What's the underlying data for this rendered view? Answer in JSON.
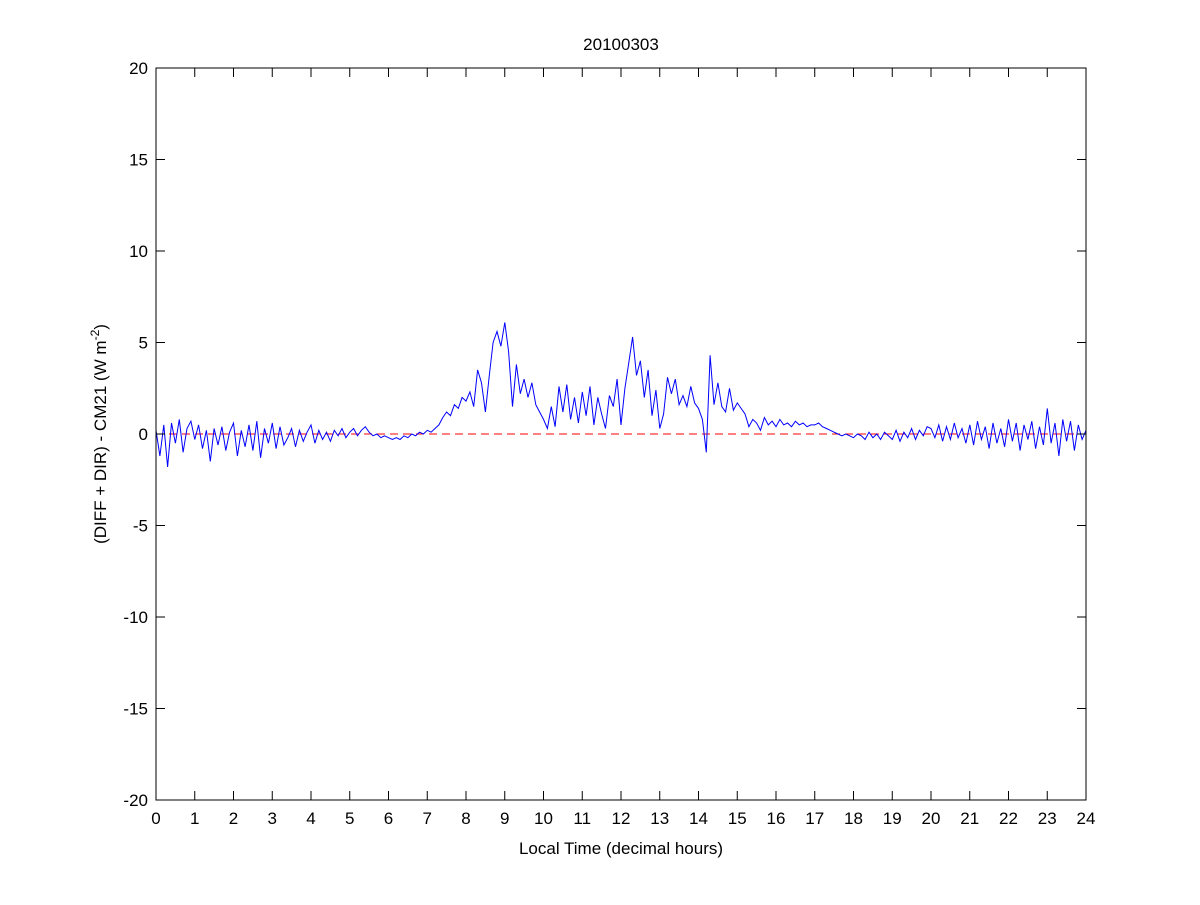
{
  "chart_data": {
    "type": "line",
    "title": "20100303",
    "xlabel": "Local Time (decimal hours)",
    "ylabel_main": "(DIFF + DIR) - CM21 (W m",
    "ylabel_sup": "-2",
    "ylabel_end": ")",
    "xlim": [
      0,
      24
    ],
    "ylim": [
      -20,
      20
    ],
    "xticks": [
      0,
      1,
      2,
      3,
      4,
      5,
      6,
      7,
      8,
      9,
      10,
      11,
      12,
      13,
      14,
      15,
      16,
      17,
      18,
      19,
      20,
      21,
      22,
      23,
      24
    ],
    "yticks": [
      -20,
      -15,
      -10,
      -5,
      0,
      5,
      10,
      15,
      20
    ],
    "grid": false,
    "series": [
      {
        "color": "#0000ff",
        "x": [
          0,
          0.1,
          0.2,
          0.3,
          0.4,
          0.5,
          0.6,
          0.7,
          0.8,
          0.9,
          1,
          1.1,
          1.2,
          1.3,
          1.4,
          1.5,
          1.6,
          1.7,
          1.8,
          1.9,
          2,
          2.1,
          2.2,
          2.3,
          2.4,
          2.5,
          2.6,
          2.7,
          2.8,
          2.9,
          3,
          3.1,
          3.2,
          3.3,
          3.4,
          3.5,
          3.6,
          3.7,
          3.8,
          3.9,
          4,
          4.1,
          4.2,
          4.3,
          4.4,
          4.5,
          4.6,
          4.7,
          4.8,
          4.9,
          5,
          5.1,
          5.2,
          5.3,
          5.4,
          5.5,
          5.6,
          5.7,
          5.8,
          5.9,
          6,
          6.1,
          6.2,
          6.3,
          6.4,
          6.5,
          6.6,
          6.7,
          6.8,
          6.9,
          7,
          7.1,
          7.2,
          7.3,
          7.4,
          7.5,
          7.6,
          7.7,
          7.8,
          7.9,
          8,
          8.1,
          8.2,
          8.3,
          8.4,
          8.5,
          8.6,
          8.7,
          8.8,
          8.9,
          9,
          9.1,
          9.2,
          9.3,
          9.4,
          9.5,
          9.6,
          9.7,
          9.8,
          9.9,
          10,
          10.1,
          10.2,
          10.3,
          10.4,
          10.5,
          10.6,
          10.7,
          10.8,
          10.9,
          11,
          11.1,
          11.2,
          11.3,
          11.4,
          11.5,
          11.6,
          11.7,
          11.8,
          11.9,
          12,
          12.1,
          12.2,
          12.3,
          12.4,
          12.5,
          12.6,
          12.7,
          12.8,
          12.9,
          13,
          13.1,
          13.2,
          13.3,
          13.4,
          13.5,
          13.6,
          13.7,
          13.8,
          13.9,
          14,
          14.1,
          14.2,
          14.3,
          14.4,
          14.5,
          14.6,
          14.7,
          14.8,
          14.9,
          15,
          15.1,
          15.2,
          15.3,
          15.4,
          15.5,
          15.6,
          15.7,
          15.8,
          15.9,
          16,
          16.1,
          16.2,
          16.3,
          16.4,
          16.5,
          16.6,
          16.7,
          16.8,
          16.9,
          17,
          17.1,
          17.2,
          17.3,
          17.4,
          17.5,
          17.6,
          17.7,
          17.8,
          17.9,
          18,
          18.1,
          18.2,
          18.3,
          18.4,
          18.5,
          18.6,
          18.7,
          18.8,
          18.9,
          19,
          19.1,
          19.2,
          19.3,
          19.4,
          19.5,
          19.6,
          19.7,
          19.8,
          19.9,
          20,
          20.1,
          20.2,
          20.3,
          20.4,
          20.5,
          20.6,
          20.7,
          20.8,
          20.9,
          21,
          21.1,
          21.2,
          21.3,
          21.4,
          21.5,
          21.6,
          21.7,
          21.8,
          21.9,
          22,
          22.1,
          22.2,
          22.3,
          22.4,
          22.5,
          22.6,
          22.7,
          22.8,
          22.9,
          23,
          23.1,
          23.2,
          23.3,
          23.4,
          23.5,
          23.6,
          23.7,
          23.8,
          23.9,
          24
        ],
        "y": [
          0.2,
          -1.2,
          0.5,
          -1.8,
          0.6,
          -0.5,
          0.8,
          -1.0,
          0.3,
          0.7,
          -0.3,
          0.5,
          -0.8,
          0.2,
          -1.5,
          0.3,
          -0.6,
          0.4,
          -0.9,
          0.1,
          0.6,
          -1.2,
          0.2,
          -0.7,
          0.5,
          -0.9,
          0.7,
          -1.3,
          0.3,
          -0.5,
          0.6,
          -0.8,
          0.4,
          -0.6,
          -0.2,
          0.3,
          -0.7,
          0.2,
          -0.4,
          0.1,
          0.5,
          -0.5,
          0.2,
          -0.3,
          0.1,
          -0.4,
          0.2,
          -0.1,
          0.3,
          -0.2,
          0.1,
          0.3,
          -0.1,
          0.2,
          0.4,
          0.1,
          -0.1,
          0.0,
          -0.2,
          -0.1,
          -0.2,
          -0.3,
          -0.2,
          -0.3,
          -0.1,
          -0.2,
          0.0,
          -0.1,
          0.1,
          0.0,
          0.2,
          0.1,
          0.3,
          0.5,
          0.9,
          1.2,
          1.0,
          1.6,
          1.4,
          2.0,
          1.8,
          2.3,
          1.5,
          3.5,
          2.8,
          1.2,
          3.2,
          5.0,
          5.6,
          4.8,
          6.1,
          4.5,
          1.5,
          3.8,
          2.2,
          3.0,
          2.0,
          2.8,
          1.6,
          1.2,
          0.8,
          0.3,
          1.5,
          0.4,
          2.6,
          1.2,
          2.7,
          0.8,
          2.0,
          0.6,
          2.3,
          1.0,
          2.6,
          0.5,
          2.0,
          1.1,
          0.3,
          2.1,
          1.5,
          3.0,
          0.5,
          2.5,
          3.9,
          5.3,
          3.2,
          4.0,
          2.0,
          3.5,
          1.0,
          2.4,
          0.3,
          1.1,
          3.1,
          2.2,
          3.0,
          1.6,
          2.1,
          1.5,
          2.6,
          1.7,
          1.4,
          0.8,
          -1.0,
          4.3,
          1.6,
          2.8,
          1.5,
          1.2,
          2.5,
          1.3,
          1.7,
          1.4,
          1.1,
          0.4,
          0.8,
          0.6,
          0.2,
          0.9,
          0.5,
          0.7,
          0.4,
          0.8,
          0.5,
          0.6,
          0.4,
          0.7,
          0.5,
          0.6,
          0.4,
          0.5,
          0.5,
          0.6,
          0.4,
          0.3,
          0.2,
          0.1,
          0.0,
          -0.1,
          0.0,
          -0.1,
          -0.2,
          0.0,
          -0.1,
          -0.3,
          0.1,
          -0.2,
          0.0,
          -0.3,
          0.1,
          -0.1,
          -0.3,
          0.2,
          -0.4,
          0.1,
          -0.2,
          0.3,
          -0.3,
          0.2,
          -0.1,
          0.4,
          0.3,
          -0.2,
          0.5,
          -0.4,
          0.4,
          -0.3,
          0.6,
          -0.2,
          0.3,
          -0.5,
          0.5,
          -0.6,
          0.7,
          -0.3,
          0.4,
          -0.8,
          0.6,
          -0.5,
          0.3,
          -0.7,
          0.8,
          -0.4,
          0.6,
          -0.9,
          0.5,
          -0.3,
          0.7,
          -0.8,
          0.4,
          -0.6,
          1.4,
          -0.5,
          0.6,
          -1.2,
          0.8,
          -0.4,
          0.7,
          -0.9,
          0.5,
          -0.3,
          0.2
        ]
      }
    ],
    "reference_line": {
      "y": 0,
      "color": "#ff0000",
      "style": "dashed"
    }
  }
}
